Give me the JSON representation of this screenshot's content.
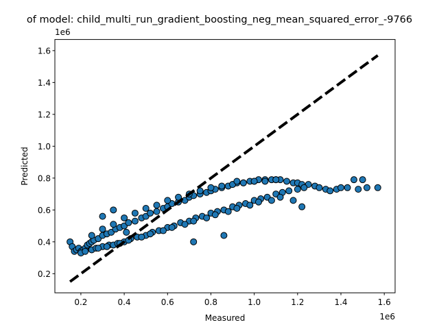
{
  "chart_data": {
    "type": "scatter",
    "title": "of model: child_multi_run_gradient_boosting_neg_mean_squared_error_-9766",
    "xlabel": "Measured",
    "ylabel": "Predicted",
    "x_offset_label": "1e6",
    "y_offset_label": "1e6",
    "xlim": [
      0.08,
      1.65
    ],
    "ylim": [
      0.08,
      1.67
    ],
    "x_ticks": [
      0.2,
      0.4,
      0.6,
      0.8,
      1.0,
      1.2,
      1.4,
      1.6
    ],
    "x_tick_labels": [
      "0.2",
      "0.4",
      "0.6",
      "0.8",
      "1.0",
      "1.2",
      "1.4",
      "1.6"
    ],
    "y_ticks": [
      0.2,
      0.4,
      0.6,
      0.8,
      1.0,
      1.2,
      1.4,
      1.6
    ],
    "y_tick_labels": [
      "0.2",
      "0.4",
      "0.6",
      "0.8",
      "1.0",
      "1.2",
      "1.4",
      "1.6"
    ],
    "grid": false,
    "point_color": "#1f77b4",
    "point_edge_color": "#000000",
    "reference_line": {
      "style": "dashed",
      "color": "#000000",
      "from": [
        0.15,
        0.15
      ],
      "to": [
        1.57,
        1.57
      ]
    },
    "series": [
      {
        "x": [
          0.15,
          0.16,
          0.17,
          0.18,
          0.19,
          0.2,
          0.21,
          0.22,
          0.23,
          0.24,
          0.25,
          0.26,
          0.28,
          0.3,
          0.32,
          0.34,
          0.36,
          0.38,
          0.4,
          0.42,
          0.45,
          0.48,
          0.5,
          0.52,
          0.55,
          0.58,
          0.6,
          0.62,
          0.65,
          0.68,
          0.7,
          0.72,
          0.75,
          0.78,
          0.8,
          0.82,
          0.85,
          0.88,
          0.9,
          0.92,
          0.95,
          0.98,
          1.0,
          1.02,
          1.05,
          1.08,
          1.1,
          1.12,
          1.15,
          1.18,
          1.2,
          1.22,
          1.25,
          1.28,
          1.3,
          1.33,
          1.35,
          1.38,
          1.4,
          1.43,
          1.46,
          1.5,
          1.52,
          1.57,
          0.2,
          0.22,
          0.25,
          0.27,
          0.3,
          0.33,
          0.35,
          0.37,
          0.4,
          0.43,
          0.46,
          0.5,
          0.53,
          0.56,
          0.6,
          0.63,
          0.66,
          0.7,
          0.73,
          0.76,
          0.8,
          0.83,
          0.86,
          0.9,
          0.93,
          0.96,
          1.0,
          1.03,
          1.06,
          1.1,
          1.13,
          1.16,
          1.2,
          1.23,
          0.25,
          0.3,
          0.35,
          0.4,
          0.45,
          0.5,
          0.55,
          0.6,
          0.65,
          0.7,
          0.75,
          0.8,
          0.85,
          0.9,
          0.95,
          1.0,
          1.05,
          1.1,
          0.28,
          0.32,
          0.38,
          0.42,
          0.48,
          0.52,
          0.58,
          0.62,
          0.68,
          0.72,
          0.78,
          0.82,
          0.88,
          0.92,
          0.98,
          1.02,
          1.08,
          1.12,
          1.18,
          1.22,
          0.3,
          0.35,
          0.72,
          0.86,
          0.41,
          0.92,
          1.48
        ],
        "y": [
          0.4,
          0.37,
          0.34,
          0.35,
          0.36,
          0.34,
          0.35,
          0.36,
          0.38,
          0.39,
          0.4,
          0.41,
          0.42,
          0.44,
          0.45,
          0.46,
          0.48,
          0.49,
          0.5,
          0.52,
          0.53,
          0.55,
          0.56,
          0.58,
          0.59,
          0.61,
          0.62,
          0.64,
          0.65,
          0.66,
          0.68,
          0.69,
          0.7,
          0.71,
          0.72,
          0.73,
          0.74,
          0.75,
          0.76,
          0.77,
          0.77,
          0.78,
          0.78,
          0.79,
          0.79,
          0.79,
          0.79,
          0.79,
          0.78,
          0.77,
          0.77,
          0.76,
          0.76,
          0.75,
          0.74,
          0.73,
          0.72,
          0.73,
          0.74,
          0.74,
          0.79,
          0.79,
          0.74,
          0.74,
          0.33,
          0.34,
          0.35,
          0.36,
          0.37,
          0.38,
          0.38,
          0.39,
          0.4,
          0.42,
          0.43,
          0.44,
          0.46,
          0.47,
          0.49,
          0.5,
          0.52,
          0.53,
          0.55,
          0.56,
          0.58,
          0.59,
          0.6,
          0.62,
          0.63,
          0.64,
          0.66,
          0.67,
          0.68,
          0.7,
          0.71,
          0.72,
          0.73,
          0.74,
          0.44,
          0.48,
          0.51,
          0.55,
          0.58,
          0.61,
          0.63,
          0.66,
          0.68,
          0.7,
          0.72,
          0.74,
          0.75,
          0.76,
          0.77,
          0.78,
          0.78,
          0.79,
          0.36,
          0.37,
          0.39,
          0.41,
          0.43,
          0.45,
          0.47,
          0.49,
          0.51,
          0.53,
          0.55,
          0.57,
          0.59,
          0.61,
          0.63,
          0.65,
          0.66,
          0.68,
          0.66,
          0.62,
          0.56,
          0.6,
          0.4,
          0.44,
          0.46,
          0.78,
          0.73
        ]
      }
    ]
  }
}
